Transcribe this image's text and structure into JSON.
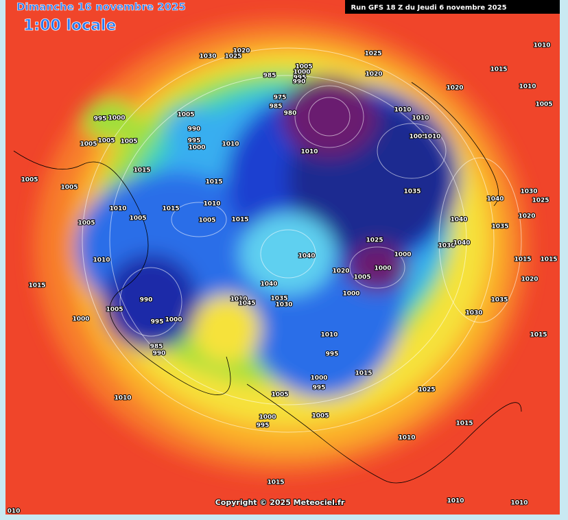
{
  "header": {
    "date": "Dimanche 16 novembre 2025",
    "time": "1:00 locale",
    "run": "Run GFS 18 Z du Jeudi 6 novembre 2025"
  },
  "footer": {
    "copyright": "Copyright © 2025 Meteociel.fr"
  },
  "isobar_labels": [
    "1030",
    "1020",
    "1025",
    "1025",
    "1020",
    "1005",
    "1000",
    "995",
    "990",
    "985",
    "975",
    "985",
    "980",
    "1010",
    "1015",
    "1020",
    "1010",
    "1005",
    "1010",
    "1010",
    "1005",
    "1010",
    "995",
    "1000",
    "1005",
    "990",
    "995",
    "1000",
    "1005",
    "1005",
    "1005",
    "1010",
    "1010",
    "1015",
    "1005",
    "1005",
    "1015",
    "1035",
    "1040",
    "1030",
    "1025",
    "1010",
    "1015",
    "1010",
    "1005",
    "1005",
    "1005",
    "1015",
    "1020",
    "1040",
    "1035",
    "1025",
    "1030",
    "1040",
    "1010",
    "1040",
    "1000",
    "1000",
    "1020",
    "1005",
    "1015",
    "1015",
    "1020",
    "1015",
    "1040",
    "1000",
    "990",
    "1010",
    "1045",
    "1035",
    "1030",
    "1035",
    "1005",
    "1030",
    "1000",
    "995",
    "1000",
    "1010",
    "1015",
    "985",
    "990",
    "995",
    "1015",
    "1000",
    "995",
    "1005",
    "1025",
    "1010",
    "1000",
    "995",
    "1005",
    "1015",
    "1010",
    "1015",
    "1010",
    "1010",
    "010"
  ]
}
